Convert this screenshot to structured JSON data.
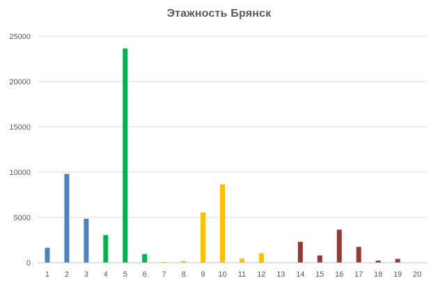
{
  "chart_data": {
    "type": "bar",
    "title": "Этажность Брянск",
    "xlabel": "",
    "ylabel": "",
    "ylim": [
      0,
      25000
    ],
    "yticks": [
      0,
      5000,
      10000,
      15000,
      20000,
      25000
    ],
    "grid": true,
    "legend": "none",
    "categories": [
      "1",
      "2",
      "3",
      "4",
      "5",
      "6",
      "7",
      "8",
      "9",
      "10",
      "11",
      "12",
      "13",
      "14",
      "15",
      "16",
      "17",
      "18",
      "19",
      "20"
    ],
    "values": [
      1650,
      9800,
      4850,
      3050,
      23650,
      950,
      80,
      180,
      5550,
      8650,
      450,
      1050,
      0,
      2300,
      800,
      3650,
      1750,
      230,
      420,
      0
    ],
    "colors": [
      "#4f81bd",
      "#4f81bd",
      "#4f81bd",
      "#00b050",
      "#00b050",
      "#00b050",
      "#ffc000",
      "#ffc000",
      "#ffc000",
      "#ffc000",
      "#ffc000",
      "#ffc000",
      "#ffc000",
      "#953735",
      "#953735",
      "#953735",
      "#953735",
      "#953735",
      "#953735",
      "#953735"
    ],
    "gridline_color": "#d9d9d9",
    "axis_color": "#bfbfbf"
  }
}
